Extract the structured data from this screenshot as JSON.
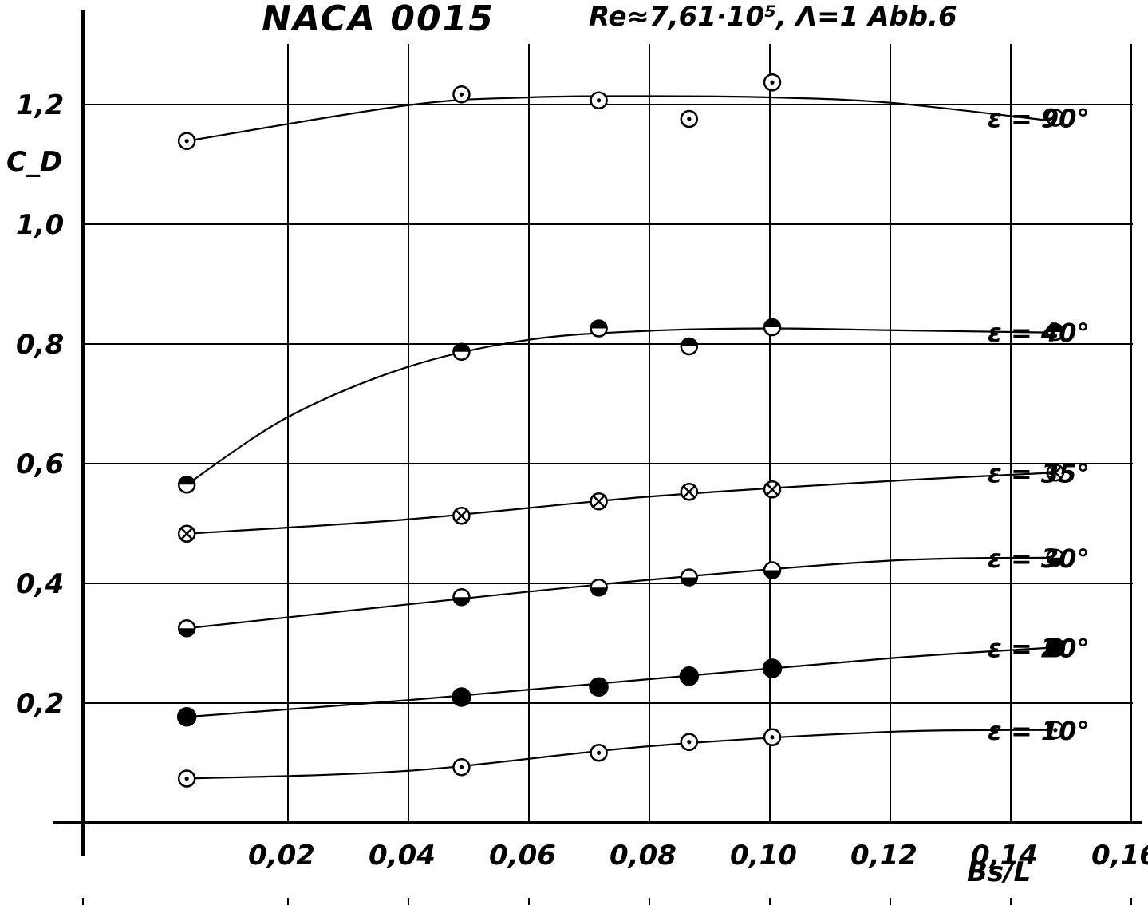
{
  "chart_data": {
    "type": "scatter",
    "title": "NACA 0015",
    "subtitle": "Re≈7,61·10⁵, Λ=1   Abb.6",
    "xlabel": "Bs/L",
    "ylabel": "C_D",
    "xlim": [
      -0.004,
      0.17
    ],
    "ylim": [
      -0.2,
      1.36
    ],
    "grid": true,
    "x_ticks": [
      {
        "value": 0.02,
        "label": "0,02"
      },
      {
        "value": 0.04,
        "label": "0,04"
      },
      {
        "value": 0.06,
        "label": "0,06"
      },
      {
        "value": 0.08,
        "label": "0,08"
      },
      {
        "value": 0.1,
        "label": "0,10"
      },
      {
        "value": 0.12,
        "label": "0,12"
      },
      {
        "value": 0.14,
        "label": "0,14"
      },
      {
        "value": 0.16,
        "label": "0,16"
      }
    ],
    "y_ticks": [
      {
        "value": 0.2,
        "label": "0,2"
      },
      {
        "value": 0.4,
        "label": "0,4"
      },
      {
        "value": 0.6,
        "label": "0,6"
      },
      {
        "value": 0.8,
        "label": "0,8"
      },
      {
        "value": 1.0,
        "label": "1,0"
      },
      {
        "value": 1.2,
        "label": "1,2"
      }
    ],
    "series": [
      {
        "name": "ε = 90°",
        "marker": "dot",
        "x": [
          0.0032,
          0.0488,
          0.0716,
          0.0866,
          0.1004,
          0.1474
        ],
        "y": [
          1.139,
          1.217,
          1.207,
          1.176,
          1.237,
          1.178
        ],
        "curve_x": [
          0.0032,
          0.04,
          0.06,
          0.08,
          0.1,
          0.12,
          0.1474
        ],
        "curve_y": [
          1.139,
          1.199,
          1.212,
          1.214,
          1.212,
          1.203,
          1.172
        ]
      },
      {
        "name": "ε = 40°",
        "marker": "half-top",
        "x": [
          0.0032,
          0.0488,
          0.0716,
          0.0866,
          0.1004,
          0.1474
        ],
        "y": [
          0.565,
          0.787,
          0.826,
          0.796,
          0.828,
          0.82
        ],
        "curve_x": [
          0.0032,
          0.02,
          0.04,
          0.06,
          0.08,
          0.1,
          0.12,
          0.1474
        ],
        "curve_y": [
          0.565,
          0.678,
          0.762,
          0.807,
          0.822,
          0.826,
          0.823,
          0.819
        ]
      },
      {
        "name": "ε = 35°",
        "marker": "cross",
        "x": [
          0.0032,
          0.0488,
          0.0716,
          0.0866,
          0.1004,
          0.1474
        ],
        "y": [
          0.483,
          0.513,
          0.537,
          0.553,
          0.557,
          0.585
        ],
        "curve_x": [
          0.0032,
          0.04,
          0.08,
          0.12,
          0.1474
        ],
        "curve_y": [
          0.483,
          0.507,
          0.545,
          0.571,
          0.585
        ]
      },
      {
        "name": "ε = 30°",
        "marker": "half-bottom",
        "x": [
          0.0032,
          0.0488,
          0.0716,
          0.0866,
          0.1004,
          0.1474
        ],
        "y": [
          0.325,
          0.377,
          0.393,
          0.41,
          0.422,
          0.443
        ],
        "curve_x": [
          0.0032,
          0.04,
          0.08,
          0.12,
          0.1474
        ],
        "curve_y": [
          0.325,
          0.365,
          0.406,
          0.438,
          0.443
        ]
      },
      {
        "name": "ε = 20°",
        "marker": "filled",
        "x": [
          0.0032,
          0.0488,
          0.0716,
          0.0866,
          0.1004,
          0.1474
        ],
        "y": [
          0.177,
          0.21,
          0.227,
          0.245,
          0.258,
          0.293
        ],
        "curve_x": [
          0.0032,
          0.04,
          0.08,
          0.12,
          0.1474
        ],
        "curve_y": [
          0.177,
          0.205,
          0.24,
          0.275,
          0.293
        ]
      },
      {
        "name": "ε = 10°",
        "marker": "dot",
        "x": [
          0.0032,
          0.0488,
          0.0716,
          0.0866,
          0.1004,
          0.1474
        ],
        "y": [
          0.074,
          0.093,
          0.117,
          0.135,
          0.143,
          0.155
        ],
        "curve_x": [
          0.0032,
          0.04,
          0.08,
          0.12,
          0.1474
        ],
        "curve_y": [
          0.074,
          0.087,
          0.128,
          0.152,
          0.155
        ]
      }
    ]
  }
}
